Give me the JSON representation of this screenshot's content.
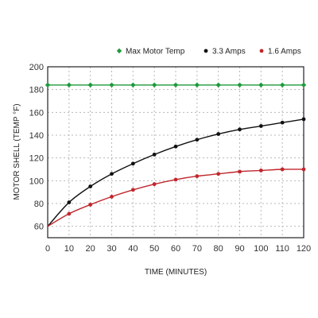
{
  "chart_data": {
    "type": "line",
    "xlabel": "TIME (MINUTES)",
    "ylabel": "MOTOR SHELL (TEMP °F)",
    "xlim": [
      0,
      120
    ],
    "ylim": [
      50,
      200
    ],
    "x_ticks": [
      0,
      10,
      20,
      30,
      40,
      50,
      60,
      70,
      80,
      90,
      100,
      110,
      120
    ],
    "y_ticks": [
      60,
      80,
      100,
      120,
      140,
      160,
      180,
      200
    ],
    "grid": true,
    "legend_position": "top-right",
    "series": [
      {
        "name": "Max Motor Temp",
        "color": "#1f9a3c",
        "marker": "diamond",
        "x": [
          0,
          10,
          20,
          30,
          40,
          50,
          60,
          70,
          80,
          90,
          100,
          110,
          120
        ],
        "y": [
          184,
          184,
          184,
          184,
          184,
          184,
          184,
          184,
          184,
          184,
          184,
          184,
          184
        ]
      },
      {
        "name": "3.3 Amps",
        "color": "#111111",
        "marker": "circle",
        "x": [
          0,
          10,
          20,
          30,
          40,
          50,
          60,
          70,
          80,
          90,
          100,
          110,
          120
        ],
        "y": [
          60,
          81,
          95,
          106,
          115,
          123,
          130,
          136,
          141,
          145,
          148,
          151,
          154
        ]
      },
      {
        "name": "1.6 Amps",
        "color": "#c0272d",
        "marker": "circle",
        "x": [
          0,
          10,
          20,
          30,
          40,
          50,
          60,
          70,
          80,
          90,
          100,
          110,
          120
        ],
        "y": [
          60,
          71,
          79,
          86,
          92,
          97,
          101,
          104,
          106,
          108,
          109,
          110,
          110
        ]
      }
    ]
  }
}
